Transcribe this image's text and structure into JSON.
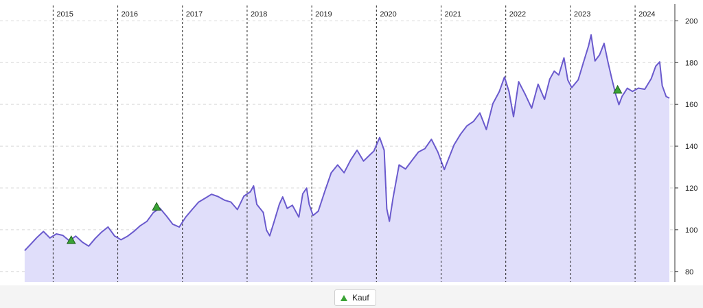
{
  "chart_data": {
    "type": "area",
    "title": "",
    "xlabel": "",
    "ylabel": "",
    "year_labels": [
      "2015",
      "2016",
      "2017",
      "2018",
      "2019",
      "2020",
      "2021",
      "2022",
      "2023",
      "2024"
    ],
    "x_range": [
      2014.55,
      2024.53
    ],
    "ylim": [
      75,
      208
    ],
    "y_ticks": [
      80,
      100,
      120,
      140,
      160,
      180,
      200
    ],
    "grid": true,
    "colors": {
      "line": "#6a5acd",
      "fill": "#e0defa",
      "marker": "#3aa335"
    },
    "series": [
      {
        "name": "",
        "points": [
          [
            2014.56,
            90
          ],
          [
            2014.65,
            93
          ],
          [
            2014.75,
            96
          ],
          [
            2014.85,
            99
          ],
          [
            2014.95,
            96
          ],
          [
            2015.05,
            98
          ],
          [
            2015.15,
            97
          ],
          [
            2015.25,
            95
          ],
          [
            2015.35,
            97
          ],
          [
            2015.45,
            94
          ],
          [
            2015.55,
            92
          ],
          [
            2015.65,
            96
          ],
          [
            2015.75,
            99
          ],
          [
            2015.85,
            101
          ],
          [
            2015.95,
            97
          ],
          [
            2016.05,
            95
          ],
          [
            2016.15,
            97
          ],
          [
            2016.25,
            99
          ],
          [
            2016.35,
            102
          ],
          [
            2016.45,
            104
          ],
          [
            2016.55,
            108
          ],
          [
            2016.65,
            110
          ],
          [
            2016.75,
            107
          ],
          [
            2016.85,
            103
          ],
          [
            2016.95,
            101
          ],
          [
            2017.05,
            106
          ],
          [
            2017.15,
            110
          ],
          [
            2017.25,
            113
          ],
          [
            2017.35,
            115
          ],
          [
            2017.45,
            117
          ],
          [
            2017.55,
            116
          ],
          [
            2017.65,
            114
          ],
          [
            2017.75,
            113
          ],
          [
            2017.85,
            110
          ],
          [
            2017.95,
            116
          ],
          [
            2018.05,
            118
          ],
          [
            2018.1,
            121
          ],
          [
            2018.15,
            112
          ],
          [
            2018.25,
            108
          ],
          [
            2018.3,
            100
          ],
          [
            2018.35,
            97
          ],
          [
            2018.42,
            104
          ],
          [
            2018.5,
            112
          ],
          [
            2018.55,
            116
          ],
          [
            2018.62,
            110
          ],
          [
            2018.7,
            112
          ],
          [
            2018.8,
            106
          ],
          [
            2018.86,
            117
          ],
          [
            2018.92,
            120
          ],
          [
            2018.96,
            112
          ],
          [
            2019.02,
            107
          ],
          [
            2019.1,
            109
          ],
          [
            2019.2,
            118
          ],
          [
            2019.3,
            127
          ],
          [
            2019.4,
            131
          ],
          [
            2019.5,
            127
          ],
          [
            2019.6,
            133
          ],
          [
            2019.7,
            138
          ],
          [
            2019.8,
            133
          ],
          [
            2019.9,
            136
          ],
          [
            2019.96,
            138
          ],
          [
            2020.05,
            144
          ],
          [
            2020.12,
            138
          ],
          [
            2020.16,
            110
          ],
          [
            2020.2,
            104
          ],
          [
            2020.26,
            116
          ],
          [
            2020.35,
            131
          ],
          [
            2020.45,
            129
          ],
          [
            2020.55,
            133
          ],
          [
            2020.65,
            137
          ],
          [
            2020.75,
            139
          ],
          [
            2020.85,
            143
          ],
          [
            2020.95,
            137
          ],
          [
            2021.05,
            129
          ],
          [
            2021.1,
            133
          ],
          [
            2021.2,
            141
          ],
          [
            2021.3,
            146
          ],
          [
            2021.4,
            150
          ],
          [
            2021.5,
            152
          ],
          [
            2021.6,
            156
          ],
          [
            2021.7,
            148
          ],
          [
            2021.8,
            160
          ],
          [
            2021.9,
            166
          ],
          [
            2021.98,
            173
          ],
          [
            2022.05,
            166
          ],
          [
            2022.12,
            154
          ],
          [
            2022.2,
            171
          ],
          [
            2022.3,
            165
          ],
          [
            2022.4,
            158
          ],
          [
            2022.5,
            170
          ],
          [
            2022.6,
            162
          ],
          [
            2022.68,
            172
          ],
          [
            2022.75,
            176
          ],
          [
            2022.82,
            174
          ],
          [
            2022.9,
            182
          ],
          [
            2022.96,
            172
          ],
          [
            2023.02,
            168
          ],
          [
            2023.12,
            172
          ],
          [
            2023.2,
            180
          ],
          [
            2023.28,
            188
          ],
          [
            2023.32,
            193
          ],
          [
            2023.38,
            181
          ],
          [
            2023.45,
            184
          ],
          [
            2023.52,
            189
          ],
          [
            2023.58,
            180
          ],
          [
            2023.64,
            172
          ],
          [
            2023.7,
            165
          ],
          [
            2023.75,
            160
          ],
          [
            2023.8,
            164
          ],
          [
            2023.88,
            168
          ],
          [
            2023.96,
            166
          ],
          [
            2024.05,
            168
          ],
          [
            2024.15,
            167
          ],
          [
            2024.25,
            172
          ],
          [
            2024.32,
            178
          ],
          [
            2024.38,
            180
          ],
          [
            2024.42,
            169
          ],
          [
            2024.48,
            164
          ],
          [
            2024.53,
            163
          ]
        ]
      }
    ],
    "markers": [
      {
        "label": "Kauf",
        "x": 2015.28,
        "y": 95
      },
      {
        "label": "Kauf",
        "x": 2016.6,
        "y": 111
      },
      {
        "label": "Kauf",
        "x": 2023.73,
        "y": 167
      }
    ]
  },
  "legend": {
    "items": [
      {
        "label": "Kauf",
        "icon": "green-triangle-up-icon"
      }
    ]
  }
}
